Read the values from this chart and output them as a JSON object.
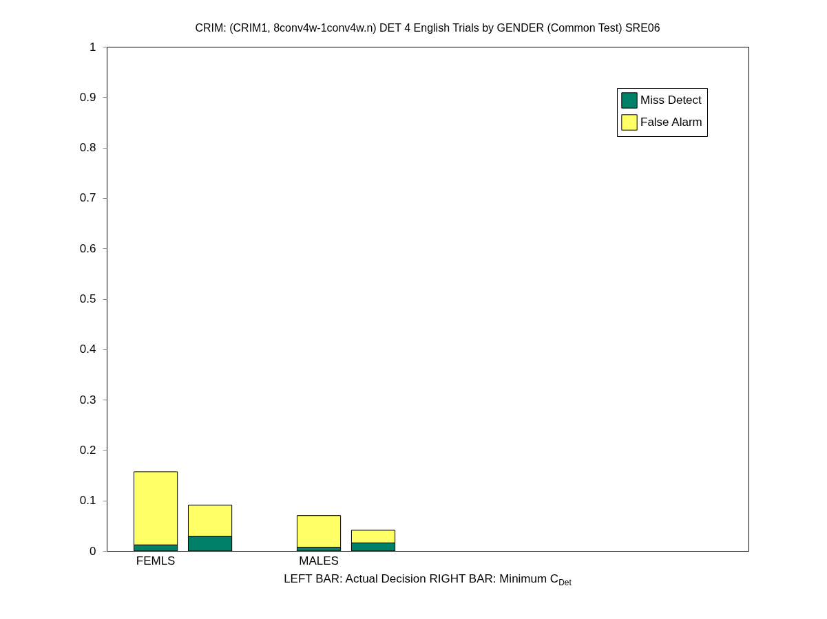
{
  "chart_data": {
    "type": "bar",
    "title": "CRIM: (CRIM1, 8conv4w-1conv4w.n) DET 4 English Trials by GENDER (Common Test) SRE06",
    "xlabel": "LEFT BAR: Actual Decision     RIGHT BAR: Minimum C$_{Det}$",
    "categories": [
      "FEMLS",
      null,
      null,
      "MALES",
      null,
      null,
      null,
      null,
      null,
      null,
      null
    ],
    "stacked": true,
    "series": [
      {
        "name": "Miss Detect",
        "color": "#008066",
        "values": [
          0.012,
          0.029,
          null,
          0.007,
          0.016,
          null,
          null,
          null,
          null,
          null,
          null
        ]
      },
      {
        "name": "False Alarm",
        "color": "#ffff66",
        "values": [
          0.145,
          0.062,
          null,
          0.063,
          0.025,
          null,
          null,
          null,
          null,
          null,
          null
        ]
      }
    ],
    "ylim": [
      0,
      1
    ],
    "yticks": [
      0,
      0.1,
      0.2,
      0.3,
      0.4,
      0.5,
      0.6,
      0.7,
      0.8,
      0.9,
      1
    ],
    "grid": false,
    "legend": "top right"
  }
}
